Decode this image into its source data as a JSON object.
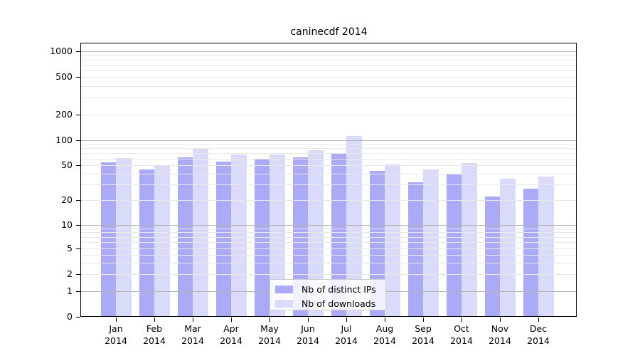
{
  "chart_data": {
    "type": "bar",
    "title": "caninecdf 2014",
    "categories": [
      "Jan",
      "Feb",
      "Mar",
      "Apr",
      "May",
      "Jun",
      "Jul",
      "Aug",
      "Sep",
      "Oct",
      "Nov",
      "Dec"
    ],
    "category_year": "2014",
    "series": [
      {
        "name": "Nb of distinct IPs",
        "color": "#aaaaf6",
        "values": [
          54,
          45,
          62,
          55,
          60,
          62,
          70,
          43,
          32,
          39,
          22,
          27
        ]
      },
      {
        "name": "Nb of downloads",
        "color": "#dadafa",
        "values": [
          61,
          50,
          78,
          68,
          67,
          76,
          112,
          51,
          45,
          53,
          35,
          37
        ]
      }
    ],
    "xlabel": "",
    "ylabel": "",
    "yscale": "symlog",
    "ylim": [
      0,
      1230
    ],
    "y_tick_labels": [
      "1000",
      "500",
      "200",
      "100",
      "50",
      "20",
      "10",
      "5",
      "2",
      "1",
      "0"
    ],
    "y_tick_values": [
      1000,
      500,
      200,
      100,
      50,
      20,
      10,
      5,
      2,
      1,
      0
    ],
    "grid": true,
    "legend_position": "lower-center",
    "colors": {
      "grid_major": "#b4b4b4",
      "grid_minor": "#e8e8e8",
      "axis": "#000000",
      "legend_border": "#cccccc"
    }
  }
}
